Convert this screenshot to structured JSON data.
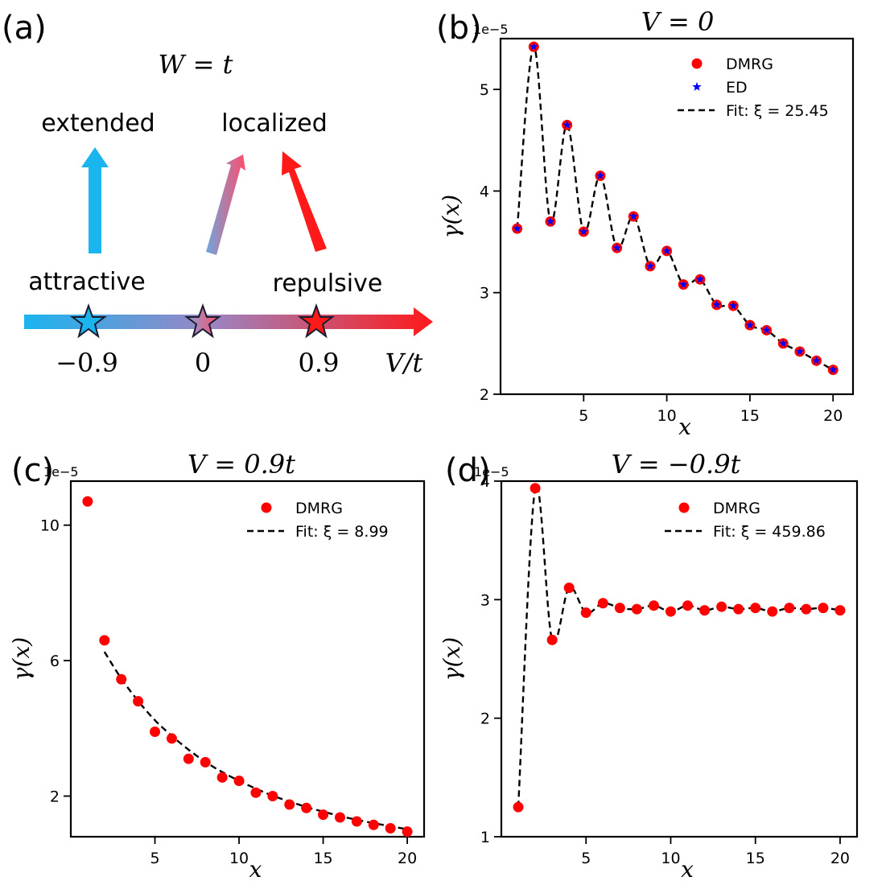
{
  "panel_a": {
    "label": "(a)",
    "title": "W = t",
    "extended_label": "extended",
    "localized_label": "localized",
    "attractive_label": "attractive",
    "repulsive_label": "repulsive",
    "axis_label": "V/t",
    "ticks": [
      "−0.9",
      "0",
      "0.9"
    ],
    "colors": {
      "attractive": "#1ab4ef",
      "repulsive": "#ff1a1a",
      "neutral": "#9a7fb8"
    }
  },
  "chart_data": [
    {
      "id": "b",
      "label": "(b)",
      "type": "scatter",
      "title": "V = 0",
      "xlabel": "x",
      "ylabel": "γ(x)",
      "offset_text": "1e−5",
      "xlim": [
        0,
        21.2
      ],
      "ylim": [
        2.0,
        5.5
      ],
      "xticks": [
        5,
        10,
        15,
        20
      ],
      "yticks": [
        2,
        3,
        4,
        5
      ],
      "x": [
        1,
        2,
        3,
        4,
        5,
        6,
        7,
        8,
        9,
        10,
        11,
        12,
        13,
        14,
        15,
        16,
        17,
        18,
        19,
        20
      ],
      "series": [
        {
          "name": "DMRG",
          "marker": "circle",
          "color": "#ff0000",
          "values": [
            3.63,
            5.42,
            3.7,
            4.65,
            3.6,
            4.15,
            3.44,
            3.75,
            3.26,
            3.41,
            3.08,
            3.13,
            2.88,
            2.87,
            2.68,
            2.63,
            2.5,
            2.42,
            2.33,
            2.24
          ]
        },
        {
          "name": "ED",
          "marker": "star",
          "color": "#0000ff",
          "values": [
            3.63,
            5.42,
            3.7,
            4.65,
            3.6,
            4.15,
            3.44,
            3.75,
            3.26,
            3.41,
            3.08,
            3.13,
            2.88,
            2.87,
            2.68,
            2.63,
            2.5,
            2.42,
            2.33,
            2.24
          ]
        },
        {
          "name": "Fit: ξ = 25.45",
          "line": "dashed",
          "color": "#000000",
          "x": [
            1,
            2,
            3,
            4,
            5,
            6,
            7,
            8,
            9,
            10,
            11,
            12,
            13,
            14,
            15,
            16,
            17,
            18,
            19,
            20
          ],
          "values": [
            3.63,
            5.42,
            3.7,
            4.65,
            3.6,
            4.15,
            3.44,
            3.75,
            3.26,
            3.41,
            3.08,
            3.13,
            2.88,
            2.87,
            2.68,
            2.63,
            2.5,
            2.42,
            2.33,
            2.24
          ]
        }
      ],
      "legend": "top-right"
    },
    {
      "id": "c",
      "label": "(c)",
      "type": "scatter",
      "title": "V = 0.9t",
      "xlabel": "x",
      "ylabel": "γ(x)",
      "offset_text": "1e−5",
      "xlim": [
        0,
        21
      ],
      "ylim": [
        0.8,
        11.3
      ],
      "xticks": [
        5,
        10,
        15,
        20
      ],
      "yticks": [
        2,
        6,
        10
      ],
      "x": [
        1,
        2,
        3,
        4,
        5,
        6,
        7,
        8,
        9,
        10,
        11,
        12,
        13,
        14,
        15,
        16,
        17,
        18,
        19,
        20
      ],
      "series": [
        {
          "name": "DMRG",
          "marker": "circle",
          "color": "#ff0000",
          "values": [
            10.7,
            6.6,
            5.45,
            4.8,
            3.9,
            3.7,
            3.1,
            3.0,
            2.55,
            2.45,
            2.1,
            2.0,
            1.75,
            1.65,
            1.45,
            1.37,
            1.25,
            1.15,
            1.05,
            0.95
          ]
        },
        {
          "name": "Fit: ξ = 8.99",
          "line": "dashed",
          "color": "#000000",
          "x": [
            2,
            3,
            4,
            5,
            6,
            7,
            8,
            9,
            10,
            11,
            12,
            13,
            14,
            15,
            16,
            17,
            18,
            19,
            20
          ],
          "values": [
            6.26,
            5.47,
            4.81,
            4.24,
            3.78,
            3.37,
            3.01,
            2.71,
            2.45,
            2.22,
            2.01,
            1.84,
            1.68,
            1.54,
            1.41,
            1.3,
            1.2,
            1.11,
            1.02
          ]
        }
      ],
      "legend": "top-right"
    },
    {
      "id": "d",
      "label": "(d)",
      "type": "scatter",
      "title": "V = −0.9t",
      "xlabel": "x",
      "ylabel": "γ(x)",
      "offset_text": "1e−5",
      "xlim": [
        0,
        21
      ],
      "ylim": [
        1.0,
        4.0
      ],
      "xticks": [
        5,
        10,
        15,
        20
      ],
      "yticks": [
        1,
        2,
        3,
        4
      ],
      "x": [
        1,
        2,
        3,
        4,
        5,
        6,
        7,
        8,
        9,
        10,
        11,
        12,
        13,
        14,
        15,
        16,
        17,
        18,
        19,
        20
      ],
      "series": [
        {
          "name": "DMRG",
          "marker": "circle",
          "color": "#ff0000",
          "values": [
            1.25,
            3.94,
            2.66,
            3.1,
            2.89,
            2.97,
            2.93,
            2.92,
            2.95,
            2.9,
            2.95,
            2.91,
            2.94,
            2.92,
            2.93,
            2.9,
            2.93,
            2.92,
            2.93,
            2.91
          ]
        },
        {
          "name": "Fit: ξ = 459.86",
          "line": "dashed",
          "color": "#000000",
          "x": [
            1,
            2,
            3,
            4,
            5,
            6,
            7,
            8,
            9,
            10,
            11,
            12,
            13,
            14,
            15,
            16,
            17,
            18,
            19,
            20
          ],
          "values": [
            1.25,
            3.94,
            2.66,
            3.1,
            2.89,
            2.97,
            2.93,
            2.92,
            2.95,
            2.9,
            2.95,
            2.91,
            2.94,
            2.92,
            2.93,
            2.9,
            2.93,
            2.92,
            2.93,
            2.91
          ]
        }
      ],
      "legend": "top-right"
    }
  ]
}
